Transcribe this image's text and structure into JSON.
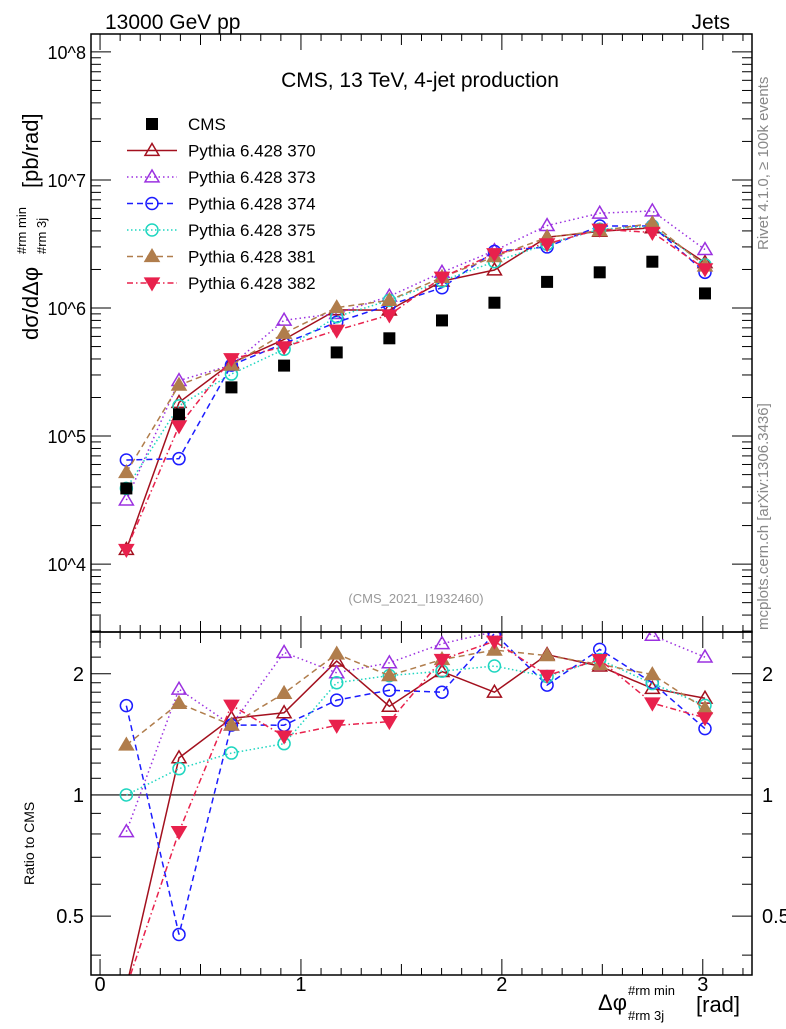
{
  "header": {
    "left": "13000 GeV pp",
    "right": "Jets"
  },
  "side_labels": {
    "rivet": "Rivet 4.1.0, ≥ 100k events",
    "mcplots": "mcplots.cern.ch [arXiv:1306.3436]"
  },
  "chart_data": {
    "type": "scatter",
    "title": "CMS, 13 TeV, 4-jet production",
    "analysis": "(CMS_2021_I1932460)",
    "xlabel": "Δφ",
    "xlabel_sup": "#rm min",
    "xlabel_sub": "#rm 3j",
    "xlabel_unit": "[rad]",
    "ylabel": "dσ/dΔφ",
    "ylabel_sup": "#rm min",
    "ylabel_sub": "#rm 3j",
    "ylabel_unit": "[pb/rad]",
    "ratio_ylabel": "Ratio to CMS",
    "xlim": [
      -0.045,
      3.245
    ],
    "ylim": [
      2950,
      138000000
    ],
    "yscale": "log",
    "ratio_ylim": [
      0.357,
      2.54
    ],
    "x_ticks": [
      "0",
      "1",
      "2",
      "3"
    ],
    "y_ticks": [
      "10^4",
      "10^5",
      "10^6",
      "10^7",
      "10^8"
    ],
    "ratio_ticks": [
      "0.5",
      "1",
      "2"
    ],
    "legend_position": "top-left",
    "x": [
      0.131,
      0.393,
      0.654,
      0.916,
      1.178,
      1.44,
      1.702,
      1.963,
      2.225,
      2.487,
      2.749,
      3.011
    ],
    "data": {
      "name": "CMS",
      "color": "#000000",
      "values": [
        39000,
        148000,
        240000,
        355000,
        450000,
        580000,
        800000,
        1100000,
        1600000,
        1900000,
        2300000,
        1300000
      ]
    },
    "series": [
      {
        "name": "Pythia 6.428 370",
        "color": "#a3101e",
        "marker": "open-triangle-up",
        "dash": "",
        "values": [
          13000,
          183000,
          372000,
          568000,
          968000,
          963000,
          1620000,
          1980000,
          3570000,
          3970000,
          4230000,
          2260000
        ]
      },
      {
        "name": "Pythia 6.428 373",
        "color": "#9b30e0",
        "marker": "open-triangle-up",
        "dash": "1.5,3",
        "values": [
          31600,
          271000,
          358000,
          802000,
          905000,
          1235000,
          1900000,
          2800000,
          4400000,
          5500000,
          5730000,
          2860000
        ]
      },
      {
        "name": "Pythia 6.428 374",
        "color": "#1c1cff",
        "marker": "open-circle",
        "dash": "6,4",
        "values": [
          65000,
          66600,
          358000,
          529000,
          774000,
          1056000,
          1440000,
          2770000,
          3000000,
          4370000,
          4370000,
          1900000
        ]
      },
      {
        "name": "Pythia 6.428 375",
        "color": "#1fd6c0",
        "marker": "open-circle",
        "dash": "1.5,2.5",
        "values": [
          39000,
          172000,
          305000,
          476000,
          855000,
          1148000,
          1624000,
          2300000,
          3150000,
          4120000,
          4350000,
          2170000
        ]
      },
      {
        "name": "Pythia 6.428 381",
        "color": "#b07d4c",
        "marker": "filled-triangle-up",
        "dash": "6,4",
        "values": [
          51900,
          250000,
          358000,
          635000,
          1008000,
          1148000,
          1736000,
          2520000,
          3550000,
          4010000,
          4580000,
          2130000
        ]
      },
      {
        "name": "Pythia 6.428 382",
        "color": "#e8214c",
        "marker": "filled-triangle-down",
        "dash": "6,3,1.5,3",
        "values": [
          13000,
          120000,
          401000,
          497000,
          670000,
          882000,
          1736000,
          2650000,
          3170000,
          4120000,
          3890000,
          2020000
        ]
      }
    ]
  }
}
